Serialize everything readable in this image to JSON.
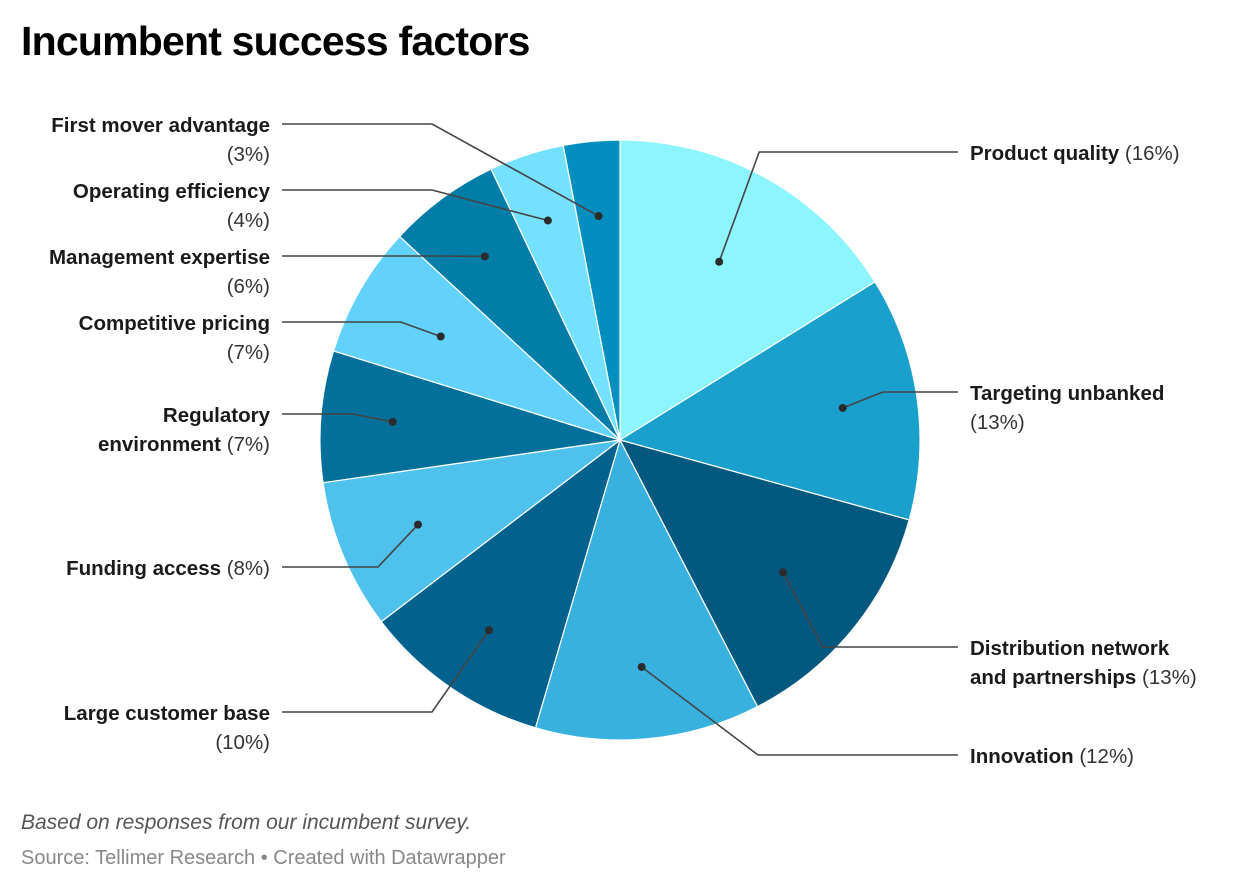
{
  "chart_data": {
    "type": "pie",
    "title": "Incumbent success factors",
    "notes": "Based on responses from our incumbent survey.",
    "source": "Source: Tellimer Research • Created with Datawrapper",
    "start": "top",
    "direction": "clockwise",
    "unit": "%",
    "slices": [
      {
        "label": "Product quality",
        "value": 16,
        "pct_text": "(16%)",
        "color": "#8cf5fe",
        "side": "right",
        "lines": [
          "Product quality (16%)"
        ]
      },
      {
        "label": "Targeting unbanked",
        "value": 13,
        "pct_text": "(13%)",
        "color": "#1aa0cc",
        "side": "right",
        "lines": [
          "Targeting unbanked",
          "(13%)"
        ]
      },
      {
        "label": "Distribution network and partnerships",
        "value": 13,
        "pct_text": "(13%)",
        "color": "#02587e",
        "side": "right",
        "lines": [
          "Distribution network",
          "and partnerships (13%)"
        ]
      },
      {
        "label": "Innovation",
        "value": 12,
        "pct_text": "(12%)",
        "color": "#39b1df",
        "side": "right",
        "lines": [
          "Innovation (12%)"
        ]
      },
      {
        "label": "Large customer base",
        "value": 10,
        "pct_text": "(10%)",
        "color": "#02628d",
        "side": "left",
        "lines": [
          "Large customer base",
          "(10%)"
        ]
      },
      {
        "label": "Funding access",
        "value": 8,
        "pct_text": "(8%)",
        "color": "#4ec1ec",
        "side": "left",
        "lines": [
          "Funding access (8%)"
        ]
      },
      {
        "label": "Regulatory environment",
        "value": 7,
        "pct_text": "(7%)",
        "color": "#03709b",
        "side": "left",
        "lines": [
          "Regulatory",
          "environment (7%)"
        ]
      },
      {
        "label": "Competitive pricing",
        "value": 7,
        "pct_text": "(7%)",
        "color": "#62d2fd",
        "side": "left",
        "lines": [
          "Competitive pricing",
          "(7%)"
        ]
      },
      {
        "label": "Management expertise",
        "value": 6,
        "pct_text": "(6%)",
        "color": "#027da8",
        "side": "left",
        "lines": [
          "Management expertise",
          "(6%)"
        ]
      },
      {
        "label": "Operating efficiency",
        "value": 4,
        "pct_text": "(4%)",
        "color": "#74e2fe",
        "side": "left",
        "lines": [
          "Operating efficiency",
          "(4%)"
        ]
      },
      {
        "label": "First mover advantage",
        "value": 3,
        "pct_text": "(3%)",
        "color": "#028ebe",
        "side": "left",
        "lines": [
          "First mover advantage",
          "(3%)"
        ]
      }
    ]
  }
}
